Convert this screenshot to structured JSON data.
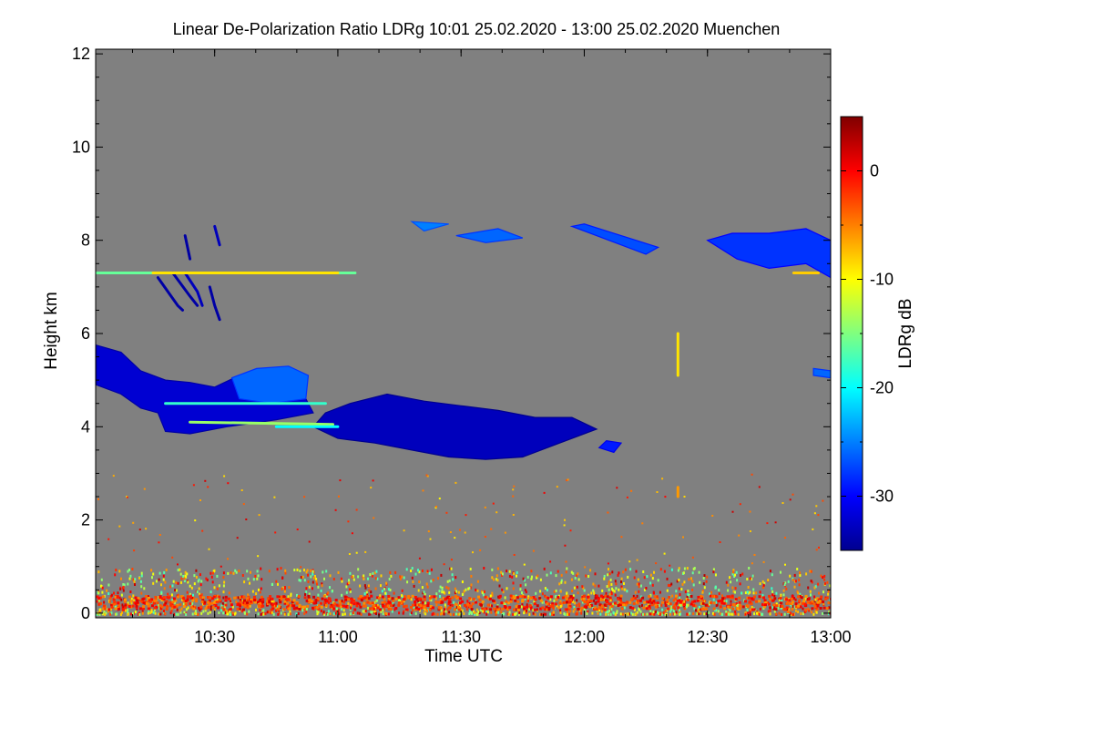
{
  "chart_data": {
    "type": "heatmap",
    "title": "Linear De-Polarization Ratio LDRg   10:01 25.02.2020 - 13:00 25.02.2020 Muenchen",
    "xlabel": "Time UTC",
    "ylabel": "Height km",
    "colorbar_label": "LDRg dB",
    "xlim_hours": [
      10.017,
      13.0
    ],
    "ylim_km": [
      -0.1,
      12.1
    ],
    "x_ticks": [
      {
        "value": 10.5,
        "label": "10:30"
      },
      {
        "value": 11.0,
        "label": "11:00"
      },
      {
        "value": 11.5,
        "label": "11:30"
      },
      {
        "value": 12.0,
        "label": "12:00"
      },
      {
        "value": 12.5,
        "label": "12:30"
      },
      {
        "value": 13.0,
        "label": "13:00"
      }
    ],
    "y_ticks": [
      {
        "value": 0,
        "label": "0"
      },
      {
        "value": 2,
        "label": "2"
      },
      {
        "value": 4,
        "label": "4"
      },
      {
        "value": 6,
        "label": "6"
      },
      {
        "value": 8,
        "label": "8"
      },
      {
        "value": 10,
        "label": "10"
      },
      {
        "value": 12,
        "label": "12"
      }
    ],
    "colorbar": {
      "range_db": [
        -35,
        5
      ],
      "ticks": [
        {
          "value": 0,
          "label": "0"
        },
        {
          "value": -10,
          "label": "-10"
        },
        {
          "value": -20,
          "label": "-20"
        },
        {
          "value": -30,
          "label": "-30"
        }
      ]
    },
    "background_color": "#808080",
    "features": [
      {
        "name": "mid-level-cloud-west",
        "ldr_db": -32,
        "polygon": [
          [
            10.02,
            5.75
          ],
          [
            10.12,
            5.6
          ],
          [
            10.2,
            5.2
          ],
          [
            10.3,
            5.0
          ],
          [
            10.4,
            4.95
          ],
          [
            10.5,
            4.85
          ],
          [
            10.6,
            5.1
          ],
          [
            10.75,
            4.95
          ],
          [
            10.87,
            4.6
          ],
          [
            10.9,
            4.3
          ],
          [
            10.75,
            4.15
          ],
          [
            10.55,
            4.0
          ],
          [
            10.4,
            3.85
          ],
          [
            10.3,
            3.9
          ],
          [
            10.27,
            4.3
          ],
          [
            10.2,
            4.4
          ],
          [
            10.12,
            4.7
          ],
          [
            10.02,
            4.9
          ]
        ]
      },
      {
        "name": "mid-level-cloud-east",
        "ldr_db": -33,
        "polygon": [
          [
            10.95,
            4.3
          ],
          [
            11.05,
            4.5
          ],
          [
            11.2,
            4.7
          ],
          [
            11.35,
            4.55
          ],
          [
            11.5,
            4.45
          ],
          [
            11.65,
            4.35
          ],
          [
            11.8,
            4.2
          ],
          [
            11.95,
            4.2
          ],
          [
            12.05,
            3.95
          ],
          [
            11.9,
            3.65
          ],
          [
            11.75,
            3.35
          ],
          [
            11.6,
            3.3
          ],
          [
            11.45,
            3.35
          ],
          [
            11.3,
            3.5
          ],
          [
            11.15,
            3.65
          ],
          [
            11.0,
            3.75
          ],
          [
            10.9,
            4.0
          ]
        ]
      },
      {
        "name": "mid-level-cloud-top-patch",
        "ldr_db": -26,
        "polygon": [
          [
            10.57,
            5.05
          ],
          [
            10.67,
            5.25
          ],
          [
            10.8,
            5.3
          ],
          [
            10.88,
            5.1
          ],
          [
            10.87,
            4.6
          ],
          [
            10.73,
            4.5
          ],
          [
            10.6,
            4.6
          ]
        ]
      },
      {
        "name": "cirrus-east-a",
        "ldr_db": -27,
        "polygon": [
          [
            11.95,
            8.3
          ],
          [
            12.1,
            8.0
          ],
          [
            12.25,
            7.7
          ],
          [
            12.3,
            7.85
          ],
          [
            12.15,
            8.1
          ],
          [
            12.0,
            8.35
          ]
        ]
      },
      {
        "name": "cirrus-east-b",
        "ldr_db": -28,
        "polygon": [
          [
            12.5,
            8.0
          ],
          [
            12.62,
            7.6
          ],
          [
            12.75,
            7.4
          ],
          [
            12.9,
            7.5
          ],
          [
            13.0,
            7.2
          ],
          [
            13.0,
            8.0
          ],
          [
            12.9,
            8.25
          ],
          [
            12.75,
            8.15
          ],
          [
            12.6,
            8.15
          ]
        ]
      },
      {
        "name": "cirrus-mid-a",
        "ldr_db": -25,
        "polygon": [
          [
            11.3,
            8.4
          ],
          [
            11.35,
            8.2
          ],
          [
            11.45,
            8.35
          ]
        ]
      },
      {
        "name": "cirrus-mid-b",
        "ldr_db": -26,
        "polygon": [
          [
            11.48,
            8.1
          ],
          [
            11.6,
            7.95
          ],
          [
            11.75,
            8.05
          ],
          [
            11.65,
            8.25
          ]
        ]
      },
      {
        "name": "small-cloud-patch",
        "ldr_db": -29,
        "polygon": [
          [
            12.06,
            3.55
          ],
          [
            12.12,
            3.45
          ],
          [
            12.15,
            3.65
          ],
          [
            12.09,
            3.7
          ]
        ]
      },
      {
        "name": "cloud-fragment-right",
        "ldr_db": -26,
        "polygon": [
          [
            12.93,
            5.25
          ],
          [
            13.0,
            5.2
          ],
          [
            13.0,
            5.05
          ],
          [
            12.93,
            5.1
          ]
        ]
      }
    ],
    "streaks": [
      {
        "name": "virga-streak",
        "ldr_db": -34,
        "points": [
          [
            10.27,
            7.2
          ],
          [
            10.35,
            6.6
          ],
          [
            10.37,
            6.5
          ]
        ]
      },
      {
        "name": "virga-streak",
        "ldr_db": -34,
        "points": [
          [
            10.33,
            7.3
          ],
          [
            10.4,
            6.8
          ],
          [
            10.43,
            6.6
          ]
        ]
      },
      {
        "name": "virga-streak",
        "ldr_db": -33,
        "points": [
          [
            10.38,
            7.3
          ],
          [
            10.43,
            6.9
          ],
          [
            10.45,
            6.6
          ]
        ]
      },
      {
        "name": "virga-streak",
        "ldr_db": -34,
        "points": [
          [
            10.48,
            7.0
          ],
          [
            10.5,
            6.6
          ],
          [
            10.52,
            6.3
          ]
        ]
      },
      {
        "name": "virga-streak",
        "ldr_db": -34,
        "points": [
          [
            10.38,
            8.1
          ],
          [
            10.4,
            7.6
          ]
        ]
      },
      {
        "name": "virga-streak",
        "ldr_db": -33,
        "points": [
          [
            10.5,
            8.3
          ],
          [
            10.52,
            7.9
          ]
        ]
      },
      {
        "name": "aerosol-layer-7.3km",
        "ldr_db": -16,
        "points": [
          [
            10.02,
            7.3
          ],
          [
            11.07,
            7.3
          ]
        ]
      },
      {
        "name": "aerosol-layer-7.3km-bright",
        "ldr_db": -9,
        "points": [
          [
            10.25,
            7.3
          ],
          [
            11.0,
            7.3
          ]
        ]
      },
      {
        "name": "layer-4.5km",
        "ldr_db": -18,
        "points": [
          [
            10.3,
            4.5
          ],
          [
            10.95,
            4.5
          ]
        ]
      },
      {
        "name": "layer-4.15km",
        "ldr_db": -14,
        "points": [
          [
            10.4,
            4.1
          ],
          [
            10.98,
            4.05
          ]
        ]
      },
      {
        "name": "layer-4.0km",
        "ldr_db": -20,
        "points": [
          [
            10.75,
            4.0
          ],
          [
            11.0,
            4.0
          ]
        ]
      },
      {
        "name": "spike-12:22",
        "ldr_db": -9,
        "points": [
          [
            12.38,
            6.0
          ],
          [
            12.38,
            5.1
          ]
        ]
      },
      {
        "name": "spike-12:22-low",
        "ldr_db": -6,
        "points": [
          [
            12.38,
            2.7
          ],
          [
            12.38,
            2.5
          ]
        ]
      },
      {
        "name": "layer-8km-right",
        "ldr_db": -8,
        "points": [
          [
            12.85,
            7.3
          ],
          [
            12.95,
            7.3
          ]
        ]
      }
    ],
    "surface_layer": {
      "name": "boundary-layer-noise",
      "height_range_km": [
        0.0,
        1.0
      ],
      "ldr_range_db": [
        -18,
        3
      ],
      "dominant_band_km": [
        0.1,
        0.4
      ],
      "dominant_ldr_db": 0
    },
    "scatter_noise": {
      "name": "sparse-noise-pixels",
      "height_range_km": [
        1.0,
        3.0
      ],
      "ldr_range_db": [
        -10,
        2
      ]
    }
  }
}
